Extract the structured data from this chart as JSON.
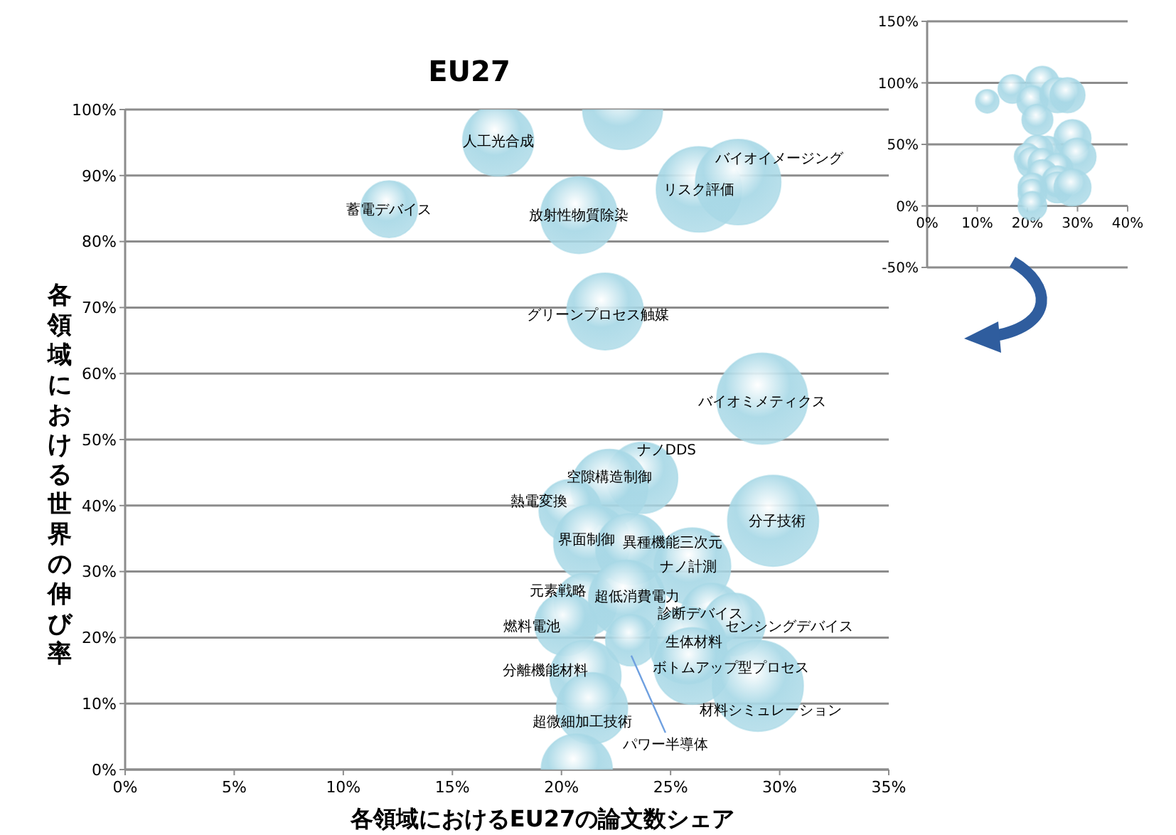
{
  "chart_data": [
    {
      "type": "bubble",
      "title": "EU27",
      "xlabel": "各領域におけるEU27の論文数シェア",
      "ylabel": "各領域における世界の伸び率",
      "grid": "y",
      "xlim": [
        0,
        35
      ],
      "xticks": [
        {
          "value": 0,
          "label": "0%"
        },
        {
          "value": 5,
          "label": "5%"
        },
        {
          "value": 10,
          "label": "10%"
        },
        {
          "value": 15,
          "label": "15%"
        },
        {
          "value": 20,
          "label": "20%"
        },
        {
          "value": 25,
          "label": "25%"
        },
        {
          "value": 30,
          "label": "30%"
        },
        {
          "value": 35,
          "label": "35%"
        }
      ],
      "ylim": [
        0,
        100
      ],
      "yticks": [
        {
          "value": 0,
          "label": "0%"
        },
        {
          "value": 10,
          "label": "10%"
        },
        {
          "value": 20,
          "label": "20%"
        },
        {
          "value": 30,
          "label": "30%"
        },
        {
          "value": 40,
          "label": "40%"
        },
        {
          "value": 50,
          "label": "50%"
        },
        {
          "value": 60,
          "label": "60%"
        },
        {
          "value": 70,
          "label": "70%"
        },
        {
          "value": 80,
          "label": "80%"
        },
        {
          "value": 90,
          "label": "90%"
        },
        {
          "value": 100,
          "label": "100%"
        }
      ],
      "series": [
        {
          "name": "人工光合成",
          "color": "#a8d8e6",
          "x": [
            17.1
          ],
          "values": [
            95.3
          ],
          "sizes": [
            0.61
          ]
        },
        {
          "color": "#a8d8e6",
          "x": [
            22.8
          ],
          "values": [
            100
          ],
          "sizes": [
            0.77
          ]
        },
        {
          "name": "蓄電デバイス",
          "color": "#a8d8e6",
          "x": [
            12.1
          ],
          "values": [
            84.9
          ],
          "sizes": [
            0.39
          ]
        },
        {
          "name": "放射性物質除染",
          "color": "#a8d8e6",
          "x": [
            20.8
          ],
          "values": [
            84
          ],
          "sizes": [
            0.71
          ]
        },
        {
          "name": "リスク評価",
          "color": "#a8d8e6",
          "x": [
            26.3
          ],
          "values": [
            87.9
          ],
          "sizes": [
            0.88
          ]
        },
        {
          "name": "バイオイメージング",
          "color": "#a8d8e6",
          "x": [
            28.1
          ],
          "values": [
            89
          ],
          "sizes": [
            0.88
          ]
        },
        {
          "name": "グリーンプロセス触媒",
          "color": "#a8d8e6",
          "x": [
            22
          ],
          "values": [
            69.4
          ],
          "sizes": [
            0.71
          ]
        },
        {
          "name": "バイオミメティクス",
          "color": "#a8d8e6",
          "x": [
            29.2
          ],
          "values": [
            56.2
          ],
          "sizes": [
            1
          ]
        },
        {
          "name": "ナノDDS",
          "color": "#a8d8e6",
          "x": [
            23.7
          ],
          "values": [
            44.2
          ],
          "sizes": [
            0.61
          ]
        },
        {
          "name": "空隙構造制御",
          "color": "#a8d8e6",
          "x": [
            22.2
          ],
          "values": [
            42.7
          ],
          "sizes": [
            0.71
          ]
        },
        {
          "name": "熱電変換",
          "color": "#a8d8e6",
          "x": [
            20.4
          ],
          "values": [
            39.2
          ],
          "sizes": [
            0.47
          ]
        },
        {
          "name": "分子技術",
          "color": "#a8d8e6",
          "x": [
            29.7
          ],
          "values": [
            37.7
          ],
          "sizes": [
            1
          ]
        },
        {
          "name": "界面制御",
          "color": "#a8d8e6",
          "x": [
            21.4
          ],
          "values": [
            34.3
          ],
          "sizes": [
            0.71
          ]
        },
        {
          "name": "異種機能三次元",
          "color": "#a8d8e6",
          "x": [
            23.2
          ],
          "values": [
            33.4
          ],
          "sizes": [
            0.61
          ]
        },
        {
          "name": "ナノ計測",
          "color": "#a8d8e6",
          "x": [
            26
          ],
          "values": [
            30.8
          ],
          "sizes": [
            0.71
          ]
        },
        {
          "name": "元素戦略",
          "color": "#a8d8e6",
          "x": [
            21.1
          ],
          "values": [
            25
          ],
          "sizes": [
            0.47
          ]
        },
        {
          "name": "超低消費電力",
          "color": "#a8d8e6",
          "x": [
            23
          ],
          "values": [
            25.9
          ],
          "sizes": [
            0.71
          ]
        },
        {
          "name": "燃料電池",
          "color": "#a8d8e6",
          "x": [
            20.2
          ],
          "values": [
            22
          ],
          "sizes": [
            0.47
          ]
        },
        {
          "name": "診断デバイス",
          "color": "#a8d8e6",
          "x": [
            26.9
          ],
          "values": [
            23.5
          ],
          "sizes": [
            0.47
          ]
        },
        {
          "name": "センシングデバイス",
          "color": "#a8d8e6",
          "x": [
            27.9
          ],
          "values": [
            22
          ],
          "sizes": [
            0.47
          ]
        },
        {
          "name": "生体材料",
          "color": "#a8d8e6",
          "x": [
            25.8
          ],
          "values": [
            18.8
          ],
          "sizes": [
            0.71
          ]
        },
        {
          "name": "パワー半導体",
          "color": "#a8d8e6",
          "x": [
            23.2
          ],
          "values": [
            19.6
          ],
          "sizes": [
            0.32
          ]
        },
        {
          "name": "ボトムアップ型プロセス",
          "color": "#a8d8e6",
          "x": [
            26
          ],
          "values": [
            15.7
          ],
          "sizes": [
            0.71
          ]
        },
        {
          "name": "分離機能材料",
          "color": "#a8d8e6",
          "x": [
            21.1
          ],
          "values": [
            14.2
          ],
          "sizes": [
            0.61
          ]
        },
        {
          "name": "材料シミュレーション",
          "color": "#a8d8e6",
          "x": [
            29
          ],
          "values": [
            12.7
          ],
          "sizes": [
            1
          ]
        },
        {
          "name": "超微細加工技術",
          "color": "#a8d8e6",
          "x": [
            21.4
          ],
          "values": [
            9.3
          ],
          "sizes": [
            0.61
          ]
        },
        {
          "color": "#a8d8e6",
          "x": [
            20.7
          ],
          "values": [
            0
          ],
          "sizes": [
            0.61
          ]
        }
      ]
    },
    {
      "type": "bubble",
      "grid": "y",
      "xlim": [
        0,
        40
      ],
      "xticks": [
        {
          "value": 0,
          "label": "0%"
        },
        {
          "value": 10,
          "label": "10%"
        },
        {
          "value": 20,
          "label": "20%"
        },
        {
          "value": 30,
          "label": "30%"
        },
        {
          "value": 40,
          "label": "40%"
        }
      ],
      "ylim": [
        -50,
        150
      ],
      "yticks": [
        {
          "value": -50,
          "label": "-50%"
        },
        {
          "value": 0,
          "label": "0%"
        },
        {
          "value": 50,
          "label": "50%"
        },
        {
          "value": 100,
          "label": "100%"
        },
        {
          "value": 150,
          "label": "150%"
        }
      ],
      "series": [
        {
          "color": "#a8d8e6",
          "x": [
            17,
            23,
            12,
            21,
            26,
            28,
            22,
            29,
            24,
            22,
            20,
            30,
            21,
            23,
            26,
            23,
            28,
            26,
            26,
            21,
            29,
            21,
            21
          ],
          "values": [
            95,
            100,
            85,
            85,
            90,
            90,
            70,
            55,
            45,
            45,
            40,
            40,
            35,
            35,
            30,
            25,
            20,
            20,
            15,
            15,
            15,
            10,
            0
          ],
          "sizes": [
            0.6,
            0.8,
            0.4,
            0.7,
            0.9,
            0.9,
            0.7,
            1,
            0.6,
            0.7,
            0.5,
            1,
            0.7,
            0.6,
            0.7,
            0.7,
            0.5,
            0.7,
            0.7,
            0.6,
            1,
            0.6,
            0.6
          ]
        }
      ]
    }
  ]
}
